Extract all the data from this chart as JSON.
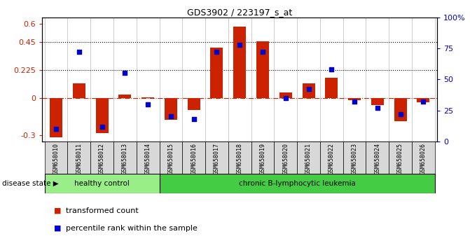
{
  "title": "GDS3902 / 223197_s_at",
  "samples": [
    "GSM658010",
    "GSM658011",
    "GSM658012",
    "GSM658013",
    "GSM658014",
    "GSM658015",
    "GSM658016",
    "GSM658017",
    "GSM658018",
    "GSM658019",
    "GSM658020",
    "GSM658021",
    "GSM658022",
    "GSM658023",
    "GSM658024",
    "GSM658025",
    "GSM658026"
  ],
  "bar_values": [
    -0.315,
    0.115,
    -0.285,
    0.025,
    0.005,
    -0.175,
    -0.095,
    0.405,
    0.575,
    0.455,
    0.045,
    0.115,
    0.165,
    -0.02,
    -0.055,
    -0.185,
    -0.035
  ],
  "dot_values": [
    10,
    72,
    12,
    55,
    30,
    20,
    18,
    72,
    78,
    72,
    35,
    42,
    58,
    32,
    27,
    22,
    32
  ],
  "ylim_left": [
    -0.35,
    0.65
  ],
  "ylim_right": [
    0,
    100
  ],
  "yticks_left": [
    -0.3,
    0,
    0.225,
    0.45,
    0.6
  ],
  "ytick_labels_left": [
    "-0.3",
    "0",
    "0.225",
    "0.45",
    "0.6"
  ],
  "yticks_right": [
    0,
    25,
    50,
    75,
    100
  ],
  "ytick_labels_right": [
    "0",
    "25",
    "50",
    "75",
    "100%"
  ],
  "hlines": [
    0.225,
    0.45
  ],
  "bar_color": "#cc2200",
  "dot_color": "#0000cc",
  "zero_line_color": "#cc2200",
  "healthy_color": "#99ee88",
  "leukemia_color": "#44cc44",
  "disease_label": "disease state",
  "healthy_label": "healthy control",
  "leukemia_label": "chronic B-lymphocytic leukemia",
  "legend_bar": "transformed count",
  "legend_dot": "percentile rank within the sample",
  "n_healthy": 5,
  "n_leukemia": 12,
  "sample_bg_color": "#d8d8d8",
  "plot_bg_color": "#ffffff"
}
